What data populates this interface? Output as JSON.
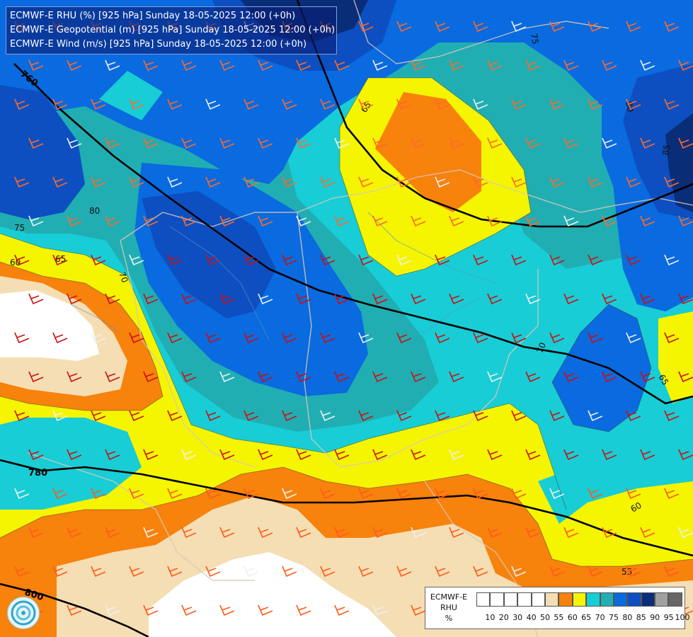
{
  "header": {
    "line1": "ECMWF-E RHU (%) [925 hPa] Sunday 18-05-2025 12:00 (+0h)",
    "line2": "ECMWF-E Geopotential (m) [925 hPa] Sunday 18-05-2025 12:00 (+0h)",
    "line3": "ECMWF-E Wind (m/s) [925 hPa] Sunday 18-05-2025 12:00 (+0h)"
  },
  "legend": {
    "title_line1": "ECMWF-E",
    "title_line2": "RHU",
    "title_line3": "%",
    "ticks": [
      "10",
      "20",
      "30",
      "40",
      "50",
      "55",
      "60",
      "65",
      "70",
      "75",
      "80",
      "85",
      "90",
      "95",
      "100"
    ],
    "colors": [
      "#ffffff",
      "#ffffff",
      "#ffffff",
      "#ffffff",
      "#ffffff",
      "#f5deb3",
      "#f7820c",
      "#f5f500",
      "#18cdd5",
      "#20aeb3",
      "#0a6adf",
      "#0d4fc0",
      "#0a2d78",
      "#a0a0a0",
      "#666666"
    ]
  },
  "contour_labels": [
    "60",
    "65",
    "75",
    "80",
    "70",
    "65",
    "75",
    "80",
    "85",
    "70",
    "65",
    "60",
    "55"
  ],
  "geopotential_labels": [
    "760",
    "780",
    "800"
  ],
  "colors": {
    "rhu_55": "#f5deb3",
    "rhu_60": "#f7820c",
    "rhu_65": "#f5f500",
    "rhu_70": "#18cdd5",
    "rhu_75": "#20aeb3",
    "rhu_80": "#0a6adf",
    "rhu_85": "#0d4fc0",
    "rhu_90": "#0a2d78",
    "rhu_below_50": "#ffffff"
  }
}
